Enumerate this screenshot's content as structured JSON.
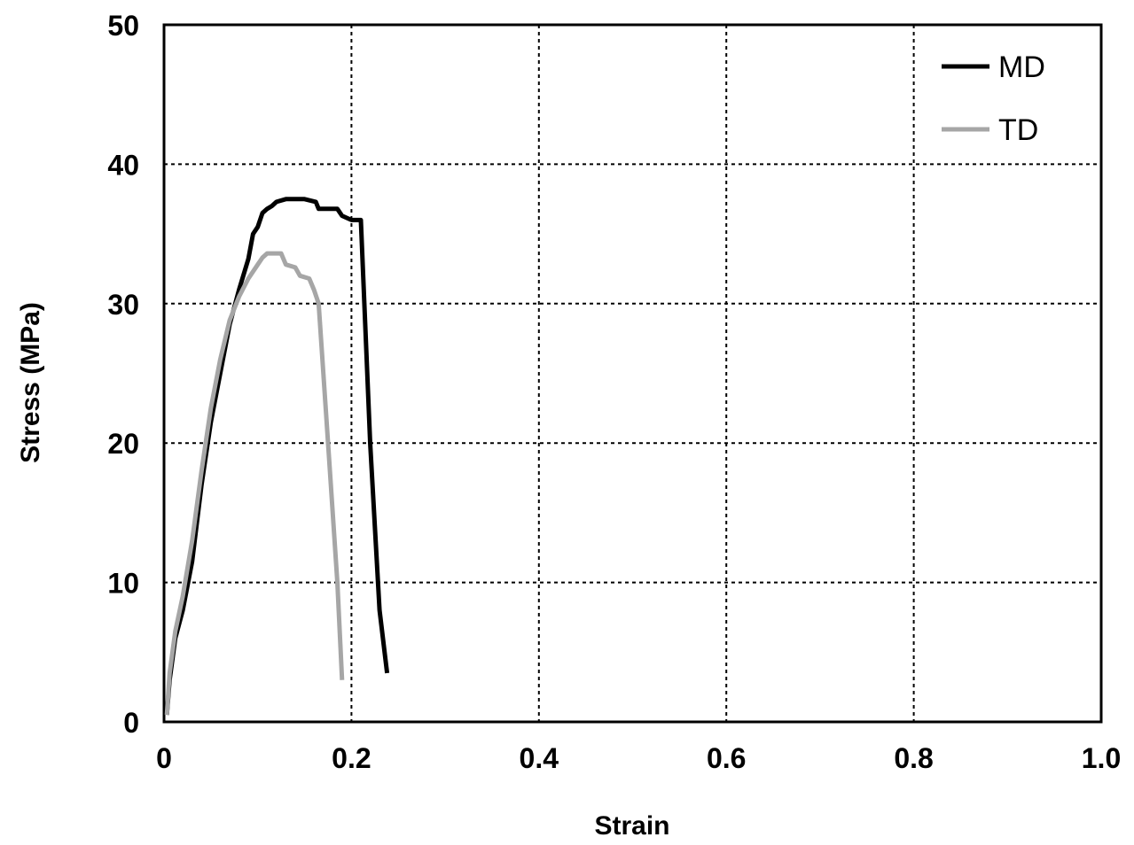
{
  "chart_data": {
    "type": "line",
    "title": "",
    "xlabel": "Strain",
    "ylabel": "Stress (MPa)",
    "xlim": [
      0,
      1.0
    ],
    "ylim": [
      0,
      50
    ],
    "xticks": [
      "0",
      "0.2",
      "0.4",
      "0.6",
      "0.8",
      "1.0"
    ],
    "xtick_values": [
      0,
      0.2,
      0.4,
      0.6,
      0.8,
      1.0
    ],
    "yticks": [
      "0",
      "10",
      "20",
      "30",
      "40",
      "50"
    ],
    "ytick_values": [
      0,
      10,
      20,
      30,
      40,
      50
    ],
    "grid": true,
    "legend_position": "top-right",
    "series": [
      {
        "name": "MD",
        "color": "#000000",
        "points": [
          [
            0.003,
            0.5
          ],
          [
            0.006,
            3
          ],
          [
            0.012,
            6
          ],
          [
            0.02,
            8
          ],
          [
            0.03,
            11.5
          ],
          [
            0.04,
            17
          ],
          [
            0.05,
            21.5
          ],
          [
            0.06,
            25
          ],
          [
            0.07,
            28.5
          ],
          [
            0.08,
            31
          ],
          [
            0.09,
            33.2
          ],
          [
            0.095,
            35
          ],
          [
            0.1,
            35.5
          ],
          [
            0.105,
            36.5
          ],
          [
            0.11,
            36.8
          ],
          [
            0.115,
            37
          ],
          [
            0.12,
            37.3
          ],
          [
            0.13,
            37.5
          ],
          [
            0.14,
            37.5
          ],
          [
            0.15,
            37.5
          ],
          [
            0.162,
            37.3
          ],
          [
            0.165,
            36.8
          ],
          [
            0.185,
            36.8
          ],
          [
            0.19,
            36.3
          ],
          [
            0.2,
            36
          ],
          [
            0.21,
            36
          ],
          [
            0.22,
            20
          ],
          [
            0.23,
            8
          ],
          [
            0.238,
            3.5
          ]
        ]
      },
      {
        "name": "TD",
        "color": "#a6a6a6",
        "points": [
          [
            0.003,
            0.5
          ],
          [
            0.006,
            3.5
          ],
          [
            0.012,
            6.5
          ],
          [
            0.02,
            9
          ],
          [
            0.03,
            13
          ],
          [
            0.04,
            18
          ],
          [
            0.05,
            22.5
          ],
          [
            0.06,
            26
          ],
          [
            0.07,
            28.8
          ],
          [
            0.08,
            30.5
          ],
          [
            0.09,
            31.8
          ],
          [
            0.1,
            32.8
          ],
          [
            0.105,
            33.3
          ],
          [
            0.11,
            33.6
          ],
          [
            0.125,
            33.6
          ],
          [
            0.13,
            32.8
          ],
          [
            0.14,
            32.6
          ],
          [
            0.145,
            32
          ],
          [
            0.155,
            31.8
          ],
          [
            0.16,
            31
          ],
          [
            0.165,
            30
          ],
          [
            0.175,
            20
          ],
          [
            0.185,
            10
          ],
          [
            0.19,
            3
          ]
        ]
      }
    ]
  }
}
